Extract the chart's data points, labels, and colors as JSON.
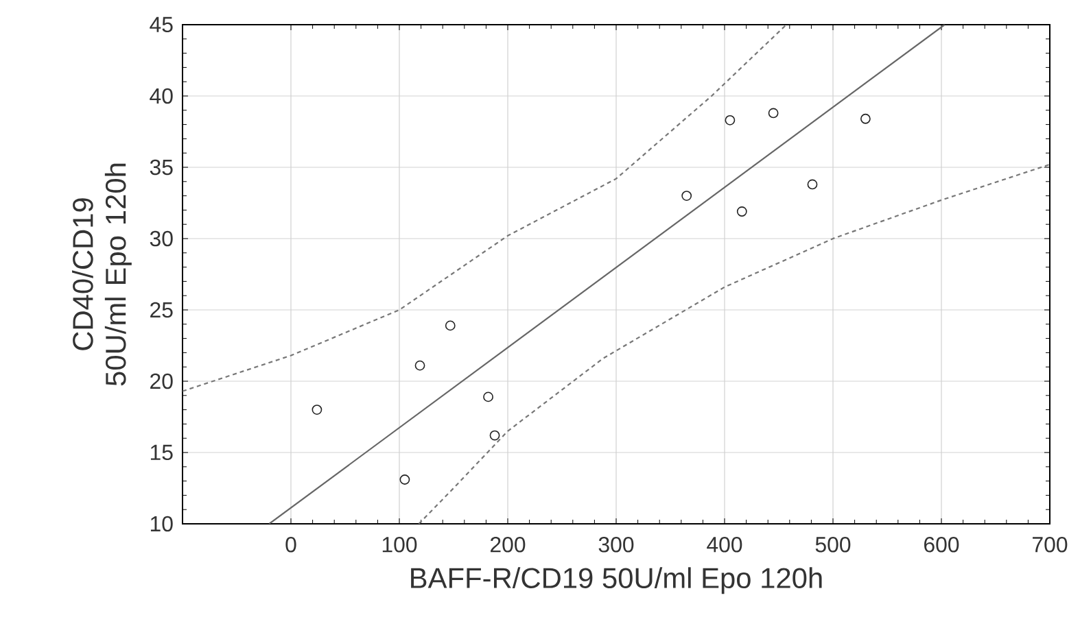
{
  "chart_data": {
    "type": "scatter",
    "xlabel": "BAFF-R/CD19 50U/ml Epo 120h",
    "ylabel": "CD40/CD19 50U/ml Epo 120h",
    "xlim": [
      -100,
      700
    ],
    "ylim": [
      10,
      45
    ],
    "xticks": [
      0,
      100,
      200,
      300,
      400,
      500,
      600,
      700
    ],
    "yticks": [
      10,
      15,
      20,
      25,
      30,
      35,
      40,
      45
    ],
    "grid": true,
    "series": [
      {
        "marker": "circle",
        "color": "#222222",
        "x": [
          24,
          105,
          119,
          147,
          182,
          188,
          365,
          405,
          416,
          445,
          481,
          530
        ],
        "values": [
          18.0,
          13.1,
          21.1,
          23.9,
          18.9,
          16.2,
          33.0,
          38.3,
          31.9,
          38.8,
          33.8,
          38.4
        ]
      },
      {
        "type": "line",
        "marker": "none",
        "color": "#666666",
        "line_style": "solid",
        "x": [
          -20,
          603
        ],
        "values": [
          10,
          45
        ]
      },
      {
        "type": "line",
        "marker": "none",
        "color": "#777777",
        "line_style": "dashed",
        "x": [
          -100,
          0,
          100,
          200,
          300,
          388,
          457
        ],
        "values": [
          19.3,
          21.8,
          25.0,
          30.2,
          34.2,
          40,
          45
        ]
      },
      {
        "type": "line",
        "marker": "none",
        "color": "#777777",
        "line_style": "dashed",
        "x": [
          118,
          150,
          200,
          288,
          400,
          500,
          600,
          700
        ],
        "values": [
          10,
          12.5,
          16.5,
          21.6,
          26.6,
          30.0,
          32.7,
          35.2
        ]
      }
    ]
  }
}
